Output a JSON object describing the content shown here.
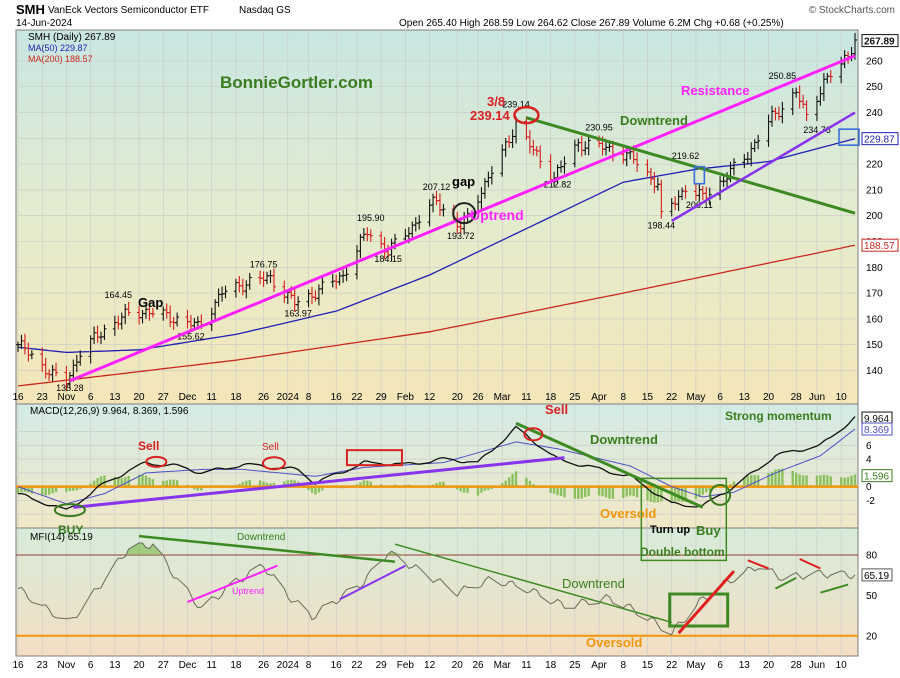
{
  "header": {
    "symbol": "SMH",
    "name": "VanEck Vectors Semiconductor ETF",
    "exchange": "Nasdaq GS",
    "date": "14-Jun-2024",
    "quote": "Open 265.40  High 268.59  Low 264.62  Close 267.89  Volume 6.2M  Chg +0.68 (+0.25%)",
    "credit": "© StockCharts.com"
  },
  "colors": {
    "ma50": "#1f1fb4",
    "ma200": "#c8281e",
    "magenta": "#ff22ff",
    "green_line": "#3d8a22",
    "purple": "#8833ee",
    "orange": "#f0960a",
    "up": "#111111",
    "down": "#d41c1c",
    "label_green": "#3a7d1e",
    "label_red": "#d92121"
  },
  "chart_data": [
    {
      "type": "line",
      "title": "SMH (Daily) 267.89",
      "legend": [
        "SMH (Daily) 267.89",
        "MA(50) 229.87",
        "MA(200) 188.57"
      ],
      "ylim": [
        127,
        272
      ],
      "y_ticks": [
        140,
        150,
        160,
        170,
        180,
        190,
        200,
        210,
        220,
        230,
        240,
        250,
        260
      ],
      "x_ticks": [
        "16",
        "23",
        "Nov",
        "6",
        "13",
        "20",
        "27",
        "Dec",
        "11",
        "18",
        "26",
        "2024",
        "8",
        "16",
        "22",
        "29",
        "Feb",
        "12",
        "20",
        "26",
        "Mar",
        "11",
        "18",
        "25",
        "Apr",
        "8",
        "15",
        "22",
        "May",
        "6",
        "13",
        "20",
        "28",
        "Jun",
        "10"
      ],
      "x_tick_dates": [
        "2023-10-16",
        "2023-10-23",
        "2023-10-30",
        "2023-11-06",
        "2023-11-13",
        "2023-11-20",
        "2023-11-27",
        "2023-12-04",
        "2023-12-11",
        "2023-12-18",
        "2023-12-26",
        "2024-01-02",
        "2024-01-08",
        "2024-01-16",
        "2024-01-22",
        "2024-01-29",
        "2024-02-05",
        "2024-02-12",
        "2024-02-20",
        "2024-02-26",
        "2024-03-04",
        "2024-03-11",
        "2024-03-18",
        "2024-03-25",
        "2024-04-01",
        "2024-04-08",
        "2024-04-15",
        "2024-04-22",
        "2024-04-29",
        "2024-05-06",
        "2024-05-13",
        "2024-05-20",
        "2024-05-28",
        "2024-06-03",
        "2024-06-10"
      ],
      "price_keypoints": [
        {
          "date": "2023-10-16",
          "close": 150
        },
        {
          "date": "2023-10-20",
          "close": 146
        },
        {
          "date": "2023-10-26",
          "close": 138
        },
        {
          "date": "2023-10-30",
          "close": 136
        },
        {
          "date": "2023-11-03",
          "close": 147
        },
        {
          "date": "2023-11-10",
          "close": 156
        },
        {
          "date": "2023-11-17",
          "close": 162
        },
        {
          "date": "2023-11-22",
          "close": 163
        },
        {
          "date": "2023-12-01",
          "close": 160
        },
        {
          "date": "2023-12-07",
          "close": 157
        },
        {
          "date": "2023-12-14",
          "close": 170
        },
        {
          "date": "2023-12-21",
          "close": 174
        },
        {
          "date": "2023-12-28",
          "close": 176
        },
        {
          "date": "2024-01-04",
          "close": 166
        },
        {
          "date": "2024-01-11",
          "close": 171
        },
        {
          "date": "2024-01-18",
          "close": 177
        },
        {
          "date": "2024-01-25",
          "close": 194
        },
        {
          "date": "2024-01-31",
          "close": 186
        },
        {
          "date": "2024-02-07",
          "close": 196
        },
        {
          "date": "2024-02-14",
          "close": 206
        },
        {
          "date": "2024-02-21",
          "close": 195
        },
        {
          "date": "2024-02-27",
          "close": 210
        },
        {
          "date": "2024-03-04",
          "close": 224
        },
        {
          "date": "2024-03-08",
          "close": 236
        },
        {
          "date": "2024-03-13",
          "close": 225
        },
        {
          "date": "2024-03-19",
          "close": 215
        },
        {
          "date": "2024-03-26",
          "close": 228
        },
        {
          "date": "2024-04-04",
          "close": 226
        },
        {
          "date": "2024-04-11",
          "close": 222
        },
        {
          "date": "2024-04-18",
          "close": 212
        },
        {
          "date": "2024-04-19",
          "close": 199
        },
        {
          "date": "2024-04-26",
          "close": 211
        },
        {
          "date": "2024-05-01",
          "close": 207
        },
        {
          "date": "2024-05-07",
          "close": 214
        },
        {
          "date": "2024-05-14",
          "close": 224
        },
        {
          "date": "2024-05-21",
          "close": 238
        },
        {
          "date": "2024-05-28",
          "close": 248
        },
        {
          "date": "2024-05-31",
          "close": 238
        },
        {
          "date": "2024-06-05",
          "close": 252
        },
        {
          "date": "2024-06-10",
          "close": 258
        },
        {
          "date": "2024-06-14",
          "close": 267.89
        }
      ],
      "ma50_keypoints": [
        {
          "date": "2023-10-16",
          "value": 149
        },
        {
          "date": "2023-10-30",
          "value": 147
        },
        {
          "date": "2023-11-20",
          "value": 148
        },
        {
          "date": "2023-12-18",
          "value": 154
        },
        {
          "date": "2024-01-16",
          "value": 163
        },
        {
          "date": "2024-02-12",
          "value": 177
        },
        {
          "date": "2024-03-11",
          "value": 195
        },
        {
          "date": "2024-04-08",
          "value": 213
        },
        {
          "date": "2024-04-29",
          "value": 218
        },
        {
          "date": "2024-05-20",
          "value": 221
        },
        {
          "date": "2024-06-14",
          "value": 229.87
        }
      ],
      "ma200_keypoints": [
        {
          "date": "2023-10-16",
          "value": 134
        },
        {
          "date": "2023-12-18",
          "value": 144
        },
        {
          "date": "2024-02-12",
          "value": 155
        },
        {
          "date": "2024-04-08",
          "value": 170
        },
        {
          "date": "2024-06-14",
          "value": 188.57
        }
      ],
      "value_labels": [
        "135.28",
        "164.45",
        "155.62",
        "176.75",
        "163.97",
        "195.90",
        "184.15",
        "207.12",
        "193.72",
        "239.14",
        "212.82",
        "230.95",
        "219.62",
        "198.44",
        "206.11",
        "250.85",
        "234.76"
      ],
      "price_badges": [
        "267.89",
        "229.87",
        "188.57"
      ],
      "annotations": [
        "BonnieGortler.com",
        "Gap",
        "gap",
        "3/8",
        "239.14",
        "Uptrend",
        "Downtrend",
        "Resistance"
      ]
    },
    {
      "type": "line",
      "title": "MACD(12,26,9) 9.964, 8.369, 1.596",
      "ylim": [
        -6,
        12
      ],
      "y_ticks": [
        -4,
        -2,
        0,
        2,
        4,
        6,
        8
      ],
      "y_tick_labels": [
        "-2",
        "0",
        "2",
        "4",
        "6"
      ],
      "value_badges": [
        "9.964",
        "8.369",
        "1.596"
      ],
      "annotations": [
        "Sell",
        "Sell",
        "Sell",
        "BUY",
        "Downtrend",
        "Strong momentum",
        "Oversold",
        "Turn up",
        "Buy",
        "Double bottom"
      ]
    },
    {
      "type": "line",
      "title": "MFI(14) 65.19",
      "ylim": [
        5,
        100
      ],
      "reference_lines": [
        20,
        80
      ],
      "y_tick_labels": [
        "20",
        "50",
        "65.19",
        "80"
      ],
      "annotations": [
        "Downtrend",
        "Uptrend",
        "Downtrend",
        "Oversold"
      ]
    }
  ]
}
